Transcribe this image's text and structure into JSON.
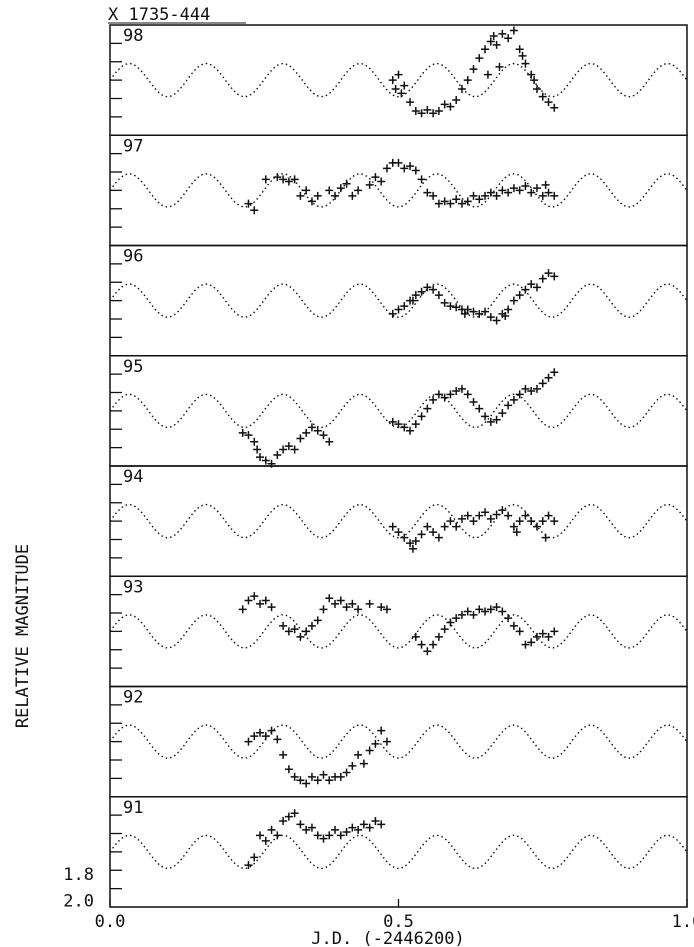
{
  "chart_data": {
    "type": "scatter",
    "title": "X 1735-444",
    "xlabel": "J.D. (-2446200)",
    "ylabel": "RELATIVE MAGNITUDE",
    "xlim": [
      0.0,
      1.0
    ],
    "x_ticks": [
      "0.0",
      "0.5",
      "1.0"
    ],
    "y_tick_labels": [
      "1.8",
      "2.0"
    ],
    "y_tick_values": [
      1.8,
      2.0
    ],
    "model_curve": {
      "style": "dotted",
      "period": 0.1333,
      "phase_of_max": 0.0333
    },
    "panels": [
      {
        "label": "98",
        "points": [
          [
            0.49,
            0.5
          ],
          [
            0.495,
            0.58
          ],
          [
            0.5,
            0.45
          ],
          [
            0.505,
            0.62
          ],
          [
            0.51,
            0.55
          ],
          [
            0.52,
            0.7
          ],
          [
            0.53,
            0.78
          ],
          [
            0.54,
            0.8
          ],
          [
            0.55,
            0.77
          ],
          [
            0.56,
            0.8
          ],
          [
            0.57,
            0.78
          ],
          [
            0.58,
            0.72
          ],
          [
            0.59,
            0.74
          ],
          [
            0.6,
            0.68
          ],
          [
            0.61,
            0.58
          ],
          [
            0.62,
            0.5
          ],
          [
            0.63,
            0.4
          ],
          [
            0.64,
            0.3
          ],
          [
            0.65,
            0.22
          ],
          [
            0.66,
            0.15
          ],
          [
            0.665,
            0.1
          ],
          [
            0.67,
            0.18
          ],
          [
            0.68,
            0.08
          ],
          [
            0.69,
            0.12
          ],
          [
            0.7,
            0.05
          ],
          [
            0.71,
            0.22
          ],
          [
            0.715,
            0.28
          ],
          [
            0.72,
            0.35
          ],
          [
            0.73,
            0.45
          ],
          [
            0.735,
            0.5
          ],
          [
            0.74,
            0.58
          ],
          [
            0.75,
            0.65
          ],
          [
            0.76,
            0.7
          ],
          [
            0.77,
            0.75
          ],
          [
            0.655,
            0.45
          ],
          [
            0.675,
            0.38
          ]
        ]
      },
      {
        "label": "97",
        "points": [
          [
            0.24,
            0.62
          ],
          [
            0.25,
            0.68
          ],
          [
            0.27,
            0.4
          ],
          [
            0.29,
            0.38
          ],
          [
            0.3,
            0.4
          ],
          [
            0.31,
            0.42
          ],
          [
            0.32,
            0.4
          ],
          [
            0.33,
            0.55
          ],
          [
            0.34,
            0.5
          ],
          [
            0.35,
            0.6
          ],
          [
            0.36,
            0.55
          ],
          [
            0.38,
            0.5
          ],
          [
            0.39,
            0.55
          ],
          [
            0.4,
            0.48
          ],
          [
            0.41,
            0.44
          ],
          [
            0.42,
            0.55
          ],
          [
            0.43,
            0.5
          ],
          [
            0.45,
            0.45
          ],
          [
            0.46,
            0.38
          ],
          [
            0.47,
            0.42
          ],
          [
            0.48,
            0.3
          ],
          [
            0.49,
            0.25
          ],
          [
            0.5,
            0.25
          ],
          [
            0.51,
            0.3
          ],
          [
            0.52,
            0.28
          ],
          [
            0.53,
            0.32
          ],
          [
            0.54,
            0.4
          ],
          [
            0.55,
            0.52
          ],
          [
            0.56,
            0.55
          ],
          [
            0.57,
            0.62
          ],
          [
            0.58,
            0.6
          ],
          [
            0.59,
            0.62
          ],
          [
            0.6,
            0.58
          ],
          [
            0.61,
            0.62
          ],
          [
            0.62,
            0.6
          ],
          [
            0.63,
            0.55
          ],
          [
            0.64,
            0.58
          ],
          [
            0.65,
            0.55
          ],
          [
            0.66,
            0.52
          ],
          [
            0.67,
            0.55
          ],
          [
            0.68,
            0.5
          ],
          [
            0.69,
            0.52
          ],
          [
            0.7,
            0.48
          ],
          [
            0.71,
            0.5
          ],
          [
            0.72,
            0.46
          ],
          [
            0.73,
            0.52
          ],
          [
            0.74,
            0.48
          ],
          [
            0.75,
            0.55
          ],
          [
            0.755,
            0.45
          ],
          [
            0.76,
            0.52
          ],
          [
            0.77,
            0.55
          ]
        ]
      },
      {
        "label": "96",
        "points": [
          [
            0.49,
            0.62
          ],
          [
            0.5,
            0.58
          ],
          [
            0.51,
            0.55
          ],
          [
            0.52,
            0.5
          ],
          [
            0.53,
            0.45
          ],
          [
            0.54,
            0.42
          ],
          [
            0.55,
            0.38
          ],
          [
            0.56,
            0.4
          ],
          [
            0.57,
            0.45
          ],
          [
            0.58,
            0.52
          ],
          [
            0.59,
            0.55
          ],
          [
            0.6,
            0.56
          ],
          [
            0.61,
            0.58
          ],
          [
            0.62,
            0.58
          ],
          [
            0.63,
            0.6
          ],
          [
            0.64,
            0.62
          ],
          [
            0.65,
            0.6
          ],
          [
            0.66,
            0.65
          ],
          [
            0.67,
            0.68
          ],
          [
            0.68,
            0.62
          ],
          [
            0.69,
            0.58
          ],
          [
            0.7,
            0.5
          ],
          [
            0.71,
            0.45
          ],
          [
            0.72,
            0.4
          ],
          [
            0.73,
            0.35
          ],
          [
            0.74,
            0.38
          ],
          [
            0.75,
            0.3
          ],
          [
            0.76,
            0.25
          ],
          [
            0.77,
            0.28
          ],
          [
            0.525,
            0.5
          ],
          [
            0.615,
            0.62
          ],
          [
            0.685,
            0.64
          ]
        ]
      },
      {
        "label": "95",
        "points": [
          [
            0.23,
            0.7
          ],
          [
            0.24,
            0.72
          ],
          [
            0.25,
            0.78
          ],
          [
            0.255,
            0.85
          ],
          [
            0.26,
            0.92
          ],
          [
            0.27,
            0.95
          ],
          [
            0.28,
            0.98
          ],
          [
            0.29,
            0.9
          ],
          [
            0.3,
            0.85
          ],
          [
            0.31,
            0.82
          ],
          [
            0.32,
            0.85
          ],
          [
            0.33,
            0.75
          ],
          [
            0.34,
            0.7
          ],
          [
            0.35,
            0.65
          ],
          [
            0.36,
            0.68
          ],
          [
            0.37,
            0.72
          ],
          [
            0.38,
            0.78
          ],
          [
            0.49,
            0.6
          ],
          [
            0.5,
            0.62
          ],
          [
            0.51,
            0.65
          ],
          [
            0.52,
            0.68
          ],
          [
            0.53,
            0.62
          ],
          [
            0.54,
            0.55
          ],
          [
            0.55,
            0.48
          ],
          [
            0.56,
            0.4
          ],
          [
            0.57,
            0.35
          ],
          [
            0.58,
            0.38
          ],
          [
            0.59,
            0.35
          ],
          [
            0.6,
            0.32
          ],
          [
            0.61,
            0.3
          ],
          [
            0.62,
            0.35
          ],
          [
            0.63,
            0.42
          ],
          [
            0.64,
            0.48
          ],
          [
            0.65,
            0.55
          ],
          [
            0.66,
            0.6
          ],
          [
            0.67,
            0.58
          ],
          [
            0.68,
            0.52
          ],
          [
            0.69,
            0.45
          ],
          [
            0.7,
            0.4
          ],
          [
            0.71,
            0.35
          ],
          [
            0.72,
            0.3
          ],
          [
            0.73,
            0.32
          ],
          [
            0.74,
            0.3
          ],
          [
            0.75,
            0.25
          ],
          [
            0.76,
            0.2
          ],
          [
            0.77,
            0.15
          ]
        ]
      },
      {
        "label": "94",
        "points": [
          [
            0.49,
            0.55
          ],
          [
            0.5,
            0.6
          ],
          [
            0.51,
            0.65
          ],
          [
            0.52,
            0.7
          ],
          [
            0.525,
            0.75
          ],
          [
            0.53,
            0.68
          ],
          [
            0.54,
            0.62
          ],
          [
            0.55,
            0.55
          ],
          [
            0.56,
            0.6
          ],
          [
            0.57,
            0.65
          ],
          [
            0.58,
            0.55
          ],
          [
            0.59,
            0.5
          ],
          [
            0.6,
            0.55
          ],
          [
            0.61,
            0.48
          ],
          [
            0.62,
            0.45
          ],
          [
            0.63,
            0.5
          ],
          [
            0.64,
            0.45
          ],
          [
            0.65,
            0.42
          ],
          [
            0.66,
            0.48
          ],
          [
            0.67,
            0.44
          ],
          [
            0.68,
            0.4
          ],
          [
            0.69,
            0.45
          ],
          [
            0.7,
            0.55
          ],
          [
            0.705,
            0.6
          ],
          [
            0.71,
            0.5
          ],
          [
            0.72,
            0.45
          ],
          [
            0.73,
            0.5
          ],
          [
            0.74,
            0.55
          ],
          [
            0.75,
            0.5
          ],
          [
            0.755,
            0.65
          ],
          [
            0.76,
            0.45
          ],
          [
            0.77,
            0.5
          ]
        ]
      },
      {
        "label": "93",
        "points": [
          [
            0.23,
            0.3
          ],
          [
            0.24,
            0.22
          ],
          [
            0.25,
            0.18
          ],
          [
            0.26,
            0.25
          ],
          [
            0.27,
            0.22
          ],
          [
            0.28,
            0.28
          ],
          [
            0.3,
            0.45
          ],
          [
            0.31,
            0.5
          ],
          [
            0.32,
            0.48
          ],
          [
            0.33,
            0.55
          ],
          [
            0.34,
            0.5
          ],
          [
            0.35,
            0.45
          ],
          [
            0.36,
            0.4
          ],
          [
            0.37,
            0.3
          ],
          [
            0.38,
            0.2
          ],
          [
            0.39,
            0.25
          ],
          [
            0.4,
            0.22
          ],
          [
            0.41,
            0.28
          ],
          [
            0.42,
            0.25
          ],
          [
            0.43,
            0.3
          ],
          [
            0.45,
            0.25
          ],
          [
            0.47,
            0.28
          ],
          [
            0.48,
            0.3
          ],
          [
            0.53,
            0.55
          ],
          [
            0.54,
            0.62
          ],
          [
            0.55,
            0.68
          ],
          [
            0.56,
            0.62
          ],
          [
            0.57,
            0.55
          ],
          [
            0.58,
            0.48
          ],
          [
            0.59,
            0.42
          ],
          [
            0.6,
            0.38
          ],
          [
            0.61,
            0.35
          ],
          [
            0.62,
            0.32
          ],
          [
            0.63,
            0.35
          ],
          [
            0.64,
            0.3
          ],
          [
            0.65,
            0.32
          ],
          [
            0.66,
            0.3
          ],
          [
            0.67,
            0.28
          ],
          [
            0.68,
            0.32
          ],
          [
            0.69,
            0.38
          ],
          [
            0.7,
            0.45
          ],
          [
            0.71,
            0.5
          ],
          [
            0.72,
            0.62
          ],
          [
            0.73,
            0.6
          ],
          [
            0.74,
            0.55
          ],
          [
            0.75,
            0.52
          ],
          [
            0.76,
            0.55
          ],
          [
            0.77,
            0.5
          ]
        ]
      },
      {
        "label": "92",
        "points": [
          [
            0.24,
            0.5
          ],
          [
            0.25,
            0.45
          ],
          [
            0.26,
            0.42
          ],
          [
            0.27,
            0.45
          ],
          [
            0.28,
            0.4
          ],
          [
            0.29,
            0.48
          ],
          [
            0.3,
            0.62
          ],
          [
            0.31,
            0.75
          ],
          [
            0.32,
            0.82
          ],
          [
            0.33,
            0.85
          ],
          [
            0.34,
            0.88
          ],
          [
            0.35,
            0.82
          ],
          [
            0.36,
            0.85
          ],
          [
            0.37,
            0.8
          ],
          [
            0.38,
            0.85
          ],
          [
            0.39,
            0.82
          ],
          [
            0.4,
            0.82
          ],
          [
            0.41,
            0.78
          ],
          [
            0.42,
            0.72
          ],
          [
            0.43,
            0.62
          ],
          [
            0.44,
            0.7
          ],
          [
            0.45,
            0.58
          ],
          [
            0.46,
            0.52
          ],
          [
            0.47,
            0.4
          ],
          [
            0.48,
            0.5
          ]
        ]
      },
      {
        "label": "91",
        "points": [
          [
            0.24,
            0.62
          ],
          [
            0.25,
            0.55
          ],
          [
            0.26,
            0.35
          ],
          [
            0.27,
            0.4
          ],
          [
            0.28,
            0.3
          ],
          [
            0.29,
            0.35
          ],
          [
            0.3,
            0.22
          ],
          [
            0.31,
            0.18
          ],
          [
            0.32,
            0.15
          ],
          [
            0.33,
            0.25
          ],
          [
            0.34,
            0.3
          ],
          [
            0.35,
            0.28
          ],
          [
            0.36,
            0.35
          ],
          [
            0.37,
            0.38
          ],
          [
            0.38,
            0.35
          ],
          [
            0.39,
            0.3
          ],
          [
            0.4,
            0.35
          ],
          [
            0.41,
            0.32
          ],
          [
            0.42,
            0.28
          ],
          [
            0.43,
            0.3
          ],
          [
            0.44,
            0.25
          ],
          [
            0.45,
            0.28
          ],
          [
            0.46,
            0.22
          ],
          [
            0.47,
            0.25
          ]
        ]
      }
    ]
  }
}
